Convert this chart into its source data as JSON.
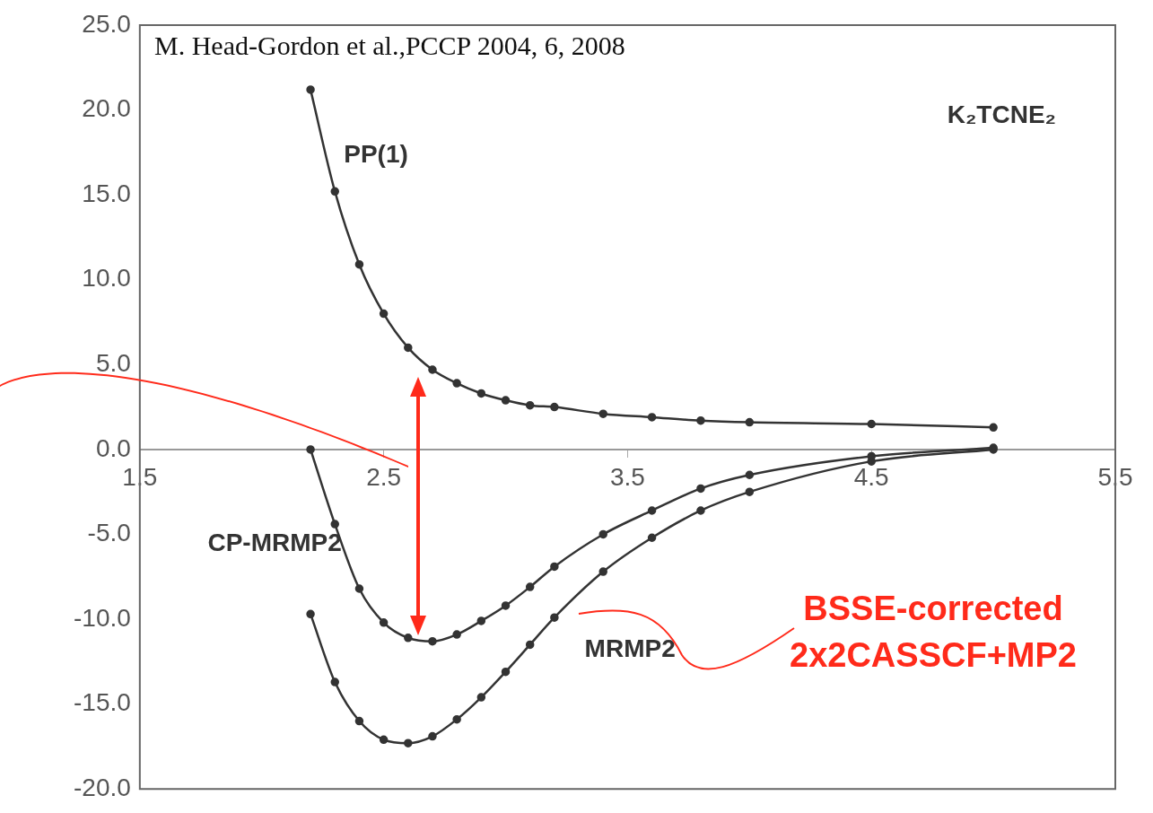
{
  "chart_data": {
    "type": "line",
    "title": "K₂TCNE₂",
    "annotations": [
      "M. Head-Gordon et al.,PCCP 2004, 6, 2008",
      "BSSE-corrected 2x2CASSCF+MP2"
    ],
    "x": [
      2.2,
      2.3,
      2.4,
      2.5,
      2.6,
      2.7,
      2.8,
      2.9,
      3.0,
      3.1,
      3.2,
      3.4,
      3.6,
      3.8,
      4.0,
      4.5,
      5.0
    ],
    "series": [
      {
        "name": "PP(1)",
        "color": "#333333",
        "values": [
          21.2,
          15.2,
          10.9,
          8.0,
          6.0,
          4.7,
          3.9,
          3.3,
          2.9,
          2.6,
          2.5,
          2.1,
          1.9,
          1.7,
          1.6,
          1.5,
          1.3
        ]
      },
      {
        "name": "CP-MRMP2",
        "color": "#333333",
        "values": [
          0.0,
          -4.4,
          -8.2,
          -10.2,
          -11.1,
          -11.3,
          -10.9,
          -10.1,
          -9.2,
          -8.1,
          -6.9,
          -5.0,
          -3.6,
          -2.3,
          -1.5,
          -0.4,
          0.1
        ]
      },
      {
        "name": "MRMP2",
        "color": "#333333",
        "values": [
          -9.7,
          -13.7,
          -16.0,
          -17.1,
          -17.3,
          -16.9,
          -15.9,
          -14.6,
          -13.1,
          -11.5,
          -9.9,
          -7.2,
          -5.2,
          -3.6,
          -2.5,
          -0.7,
          0.0
        ]
      }
    ],
    "xlim": [
      1.5,
      5.5
    ],
    "xticks": [
      1.5,
      2.5,
      3.5,
      4.5,
      5.5
    ],
    "ylim": [
      -20,
      25
    ],
    "yticks": [
      {
        "value": -20,
        "label": "-20.0"
      },
      {
        "value": -15,
        "label": "-15.0"
      },
      {
        "value": -10,
        "label": "-10.0"
      },
      {
        "value": -5,
        "label": "-5.0"
      },
      {
        "value": 0,
        "label": "0.0"
      },
      {
        "value": 5,
        "label": "5.0"
      },
      {
        "value": 10,
        "label": "10.0"
      },
      {
        "value": 15,
        "label": "15.0"
      },
      {
        "value": 20,
        "label": "20.0"
      },
      {
        "value": 25,
        "label": "25.0"
      }
    ],
    "grid": false,
    "legend": false,
    "marker": "circle",
    "line_style": "solid"
  }
}
